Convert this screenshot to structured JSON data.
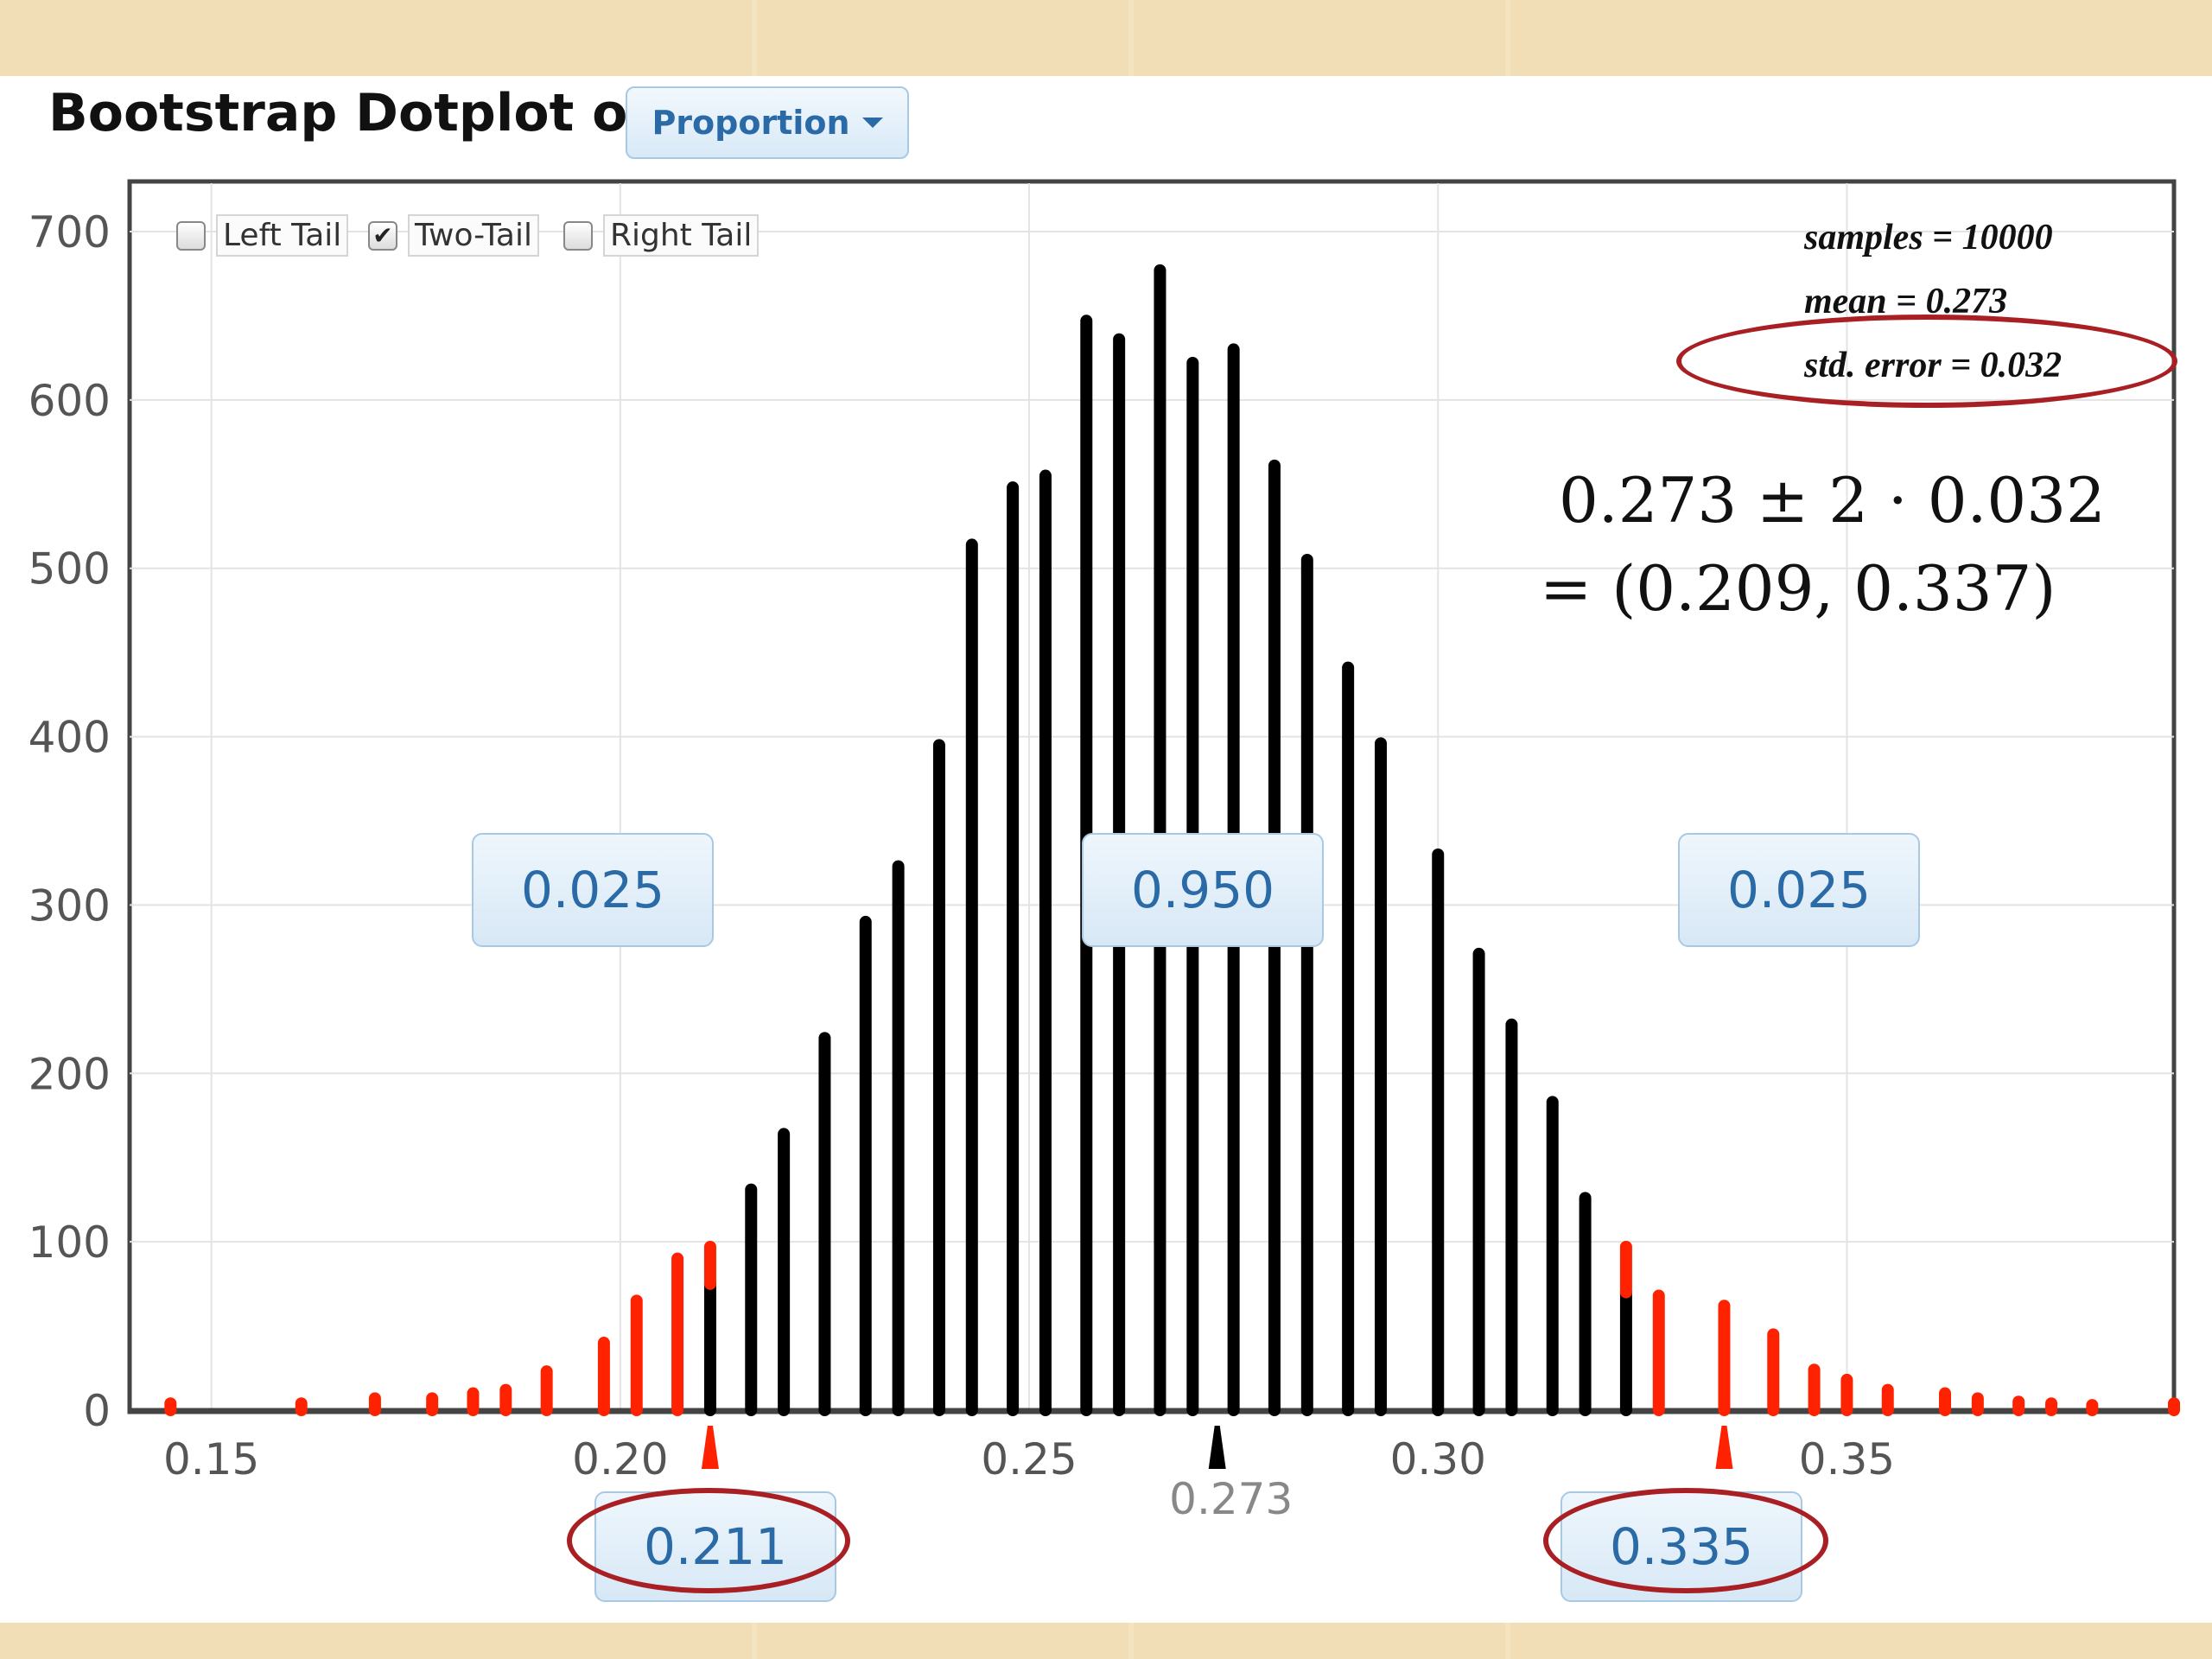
{
  "title": "Bootstrap Dotplot of",
  "dropdown": {
    "label": "Proportion",
    "icon": "caret-down-icon"
  },
  "tails": [
    {
      "label": "Left Tail",
      "checked": false
    },
    {
      "label": "Two-Tail",
      "checked": true
    },
    {
      "label": "Right Tail",
      "checked": false
    }
  ],
  "stats": {
    "samples": "samples = 10000",
    "mean": "mean = 0.273",
    "std_error": "std. error = 0.032"
  },
  "formula": {
    "line1": "0.273 ± 2 · 0.032",
    "line2": "= (0.209, 0.337)"
  },
  "proportions": {
    "left": "0.025",
    "middle": "0.950",
    "right": "0.025"
  },
  "cutoffs": {
    "left": "0.211",
    "right": "0.335"
  },
  "mean_label": "0.273",
  "colors": {
    "dots": "#000000",
    "tail": "#ff2200",
    "box_text": "#2a6aa6",
    "highlight": "#a81f24"
  },
  "chart_data": {
    "type": "bar",
    "xlim": [
      0.14,
      0.39
    ],
    "ylim": [
      0,
      700
    ],
    "xticks": [
      0.15,
      0.2,
      0.25,
      0.3,
      0.35
    ],
    "xtick_labels": [
      "0.15",
      "0.20",
      "0.25",
      "0.30",
      "0.35"
    ],
    "yticks": [
      0,
      100,
      200,
      300,
      400,
      500,
      600,
      700
    ],
    "ytick_labels": [
      "0",
      "100",
      "200",
      "300",
      "400",
      "500",
      "600",
      "700"
    ],
    "grid": true,
    "lower_cutoff": 0.211,
    "upper_cutoff": 0.335,
    "mean": 0.273,
    "x": [
      0.145,
      0.161,
      0.17,
      0.177,
      0.182,
      0.186,
      0.191,
      0.198,
      0.202,
      0.207,
      0.211,
      0.216,
      0.22,
      0.225,
      0.23,
      0.239,
      0.234,
      0.243,
      0.248,
      0.252,
      0.257,
      0.261,
      0.266,
      0.27,
      0.275,
      0.28,
      0.284,
      0.289,
      0.293,
      0.3,
      0.305,
      0.309,
      0.314,
      0.318,
      0.323,
      0.327,
      0.335,
      0.341,
      0.346,
      0.35,
      0.355,
      0.362,
      0.366,
      0.371,
      0.375,
      0.38,
      0.39
    ],
    "counts": [
      4,
      4,
      7,
      7,
      10,
      12,
      23,
      40,
      65,
      90,
      97,
      131,
      164,
      221,
      290,
      395,
      323,
      514,
      548,
      555,
      647,
      636,
      677,
      622,
      630,
      561,
      505,
      441,
      396,
      330,
      271,
      229,
      183,
      126,
      97,
      68,
      62,
      45,
      24,
      18,
      12,
      10,
      7,
      5,
      4,
      3,
      4
    ],
    "tail_counts": [
      4,
      4,
      7,
      7,
      10,
      12,
      23,
      40,
      65,
      90,
      22,
      0,
      0,
      0,
      0,
      0,
      0,
      0,
      0,
      0,
      0,
      0,
      0,
      0,
      0,
      0,
      0,
      0,
      0,
      0,
      0,
      0,
      0,
      0,
      27,
      68,
      62,
      45,
      24,
      18,
      12,
      10,
      7,
      5,
      4,
      3,
      4
    ]
  }
}
